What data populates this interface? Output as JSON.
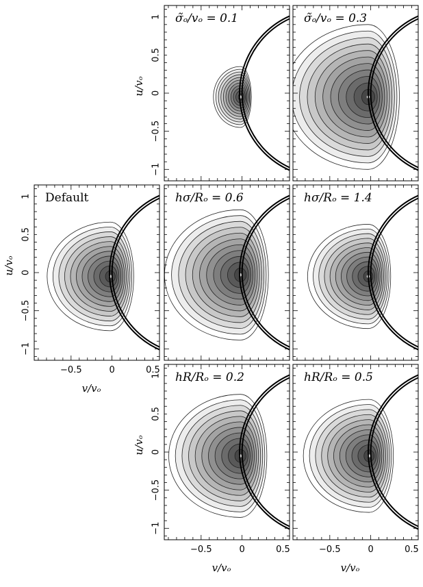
{
  "chart_data": [
    {
      "type": "contour",
      "panel_label": "σ̃ₒ/vₒ = 0.1",
      "xlabel": "",
      "ylabel": "u/vₒ",
      "xlim": [
        -0.95,
        0.58
      ],
      "ylim": [
        -1.15,
        1.15
      ],
      "x_ticks": [
        -0.5,
        0,
        0.5
      ],
      "y_ticks": [
        -1,
        -0.5,
        0,
        0.5,
        1
      ],
      "x_tick_labels": [],
      "y_tick_labels": [
        "−1",
        "−0.5",
        "0",
        "0.5",
        "1"
      ],
      "peak": {
        "x": -0.02,
        "y": -0.05
      },
      "spread": 0.32,
      "circle_center_x": 1.0,
      "circle_radii": [
        1.0,
        1.03
      ]
    },
    {
      "type": "contour",
      "panel_label": "σ̃ₒ/vₒ = 0.3",
      "xlabel": "",
      "ylabel": "",
      "xlim": [
        -0.95,
        0.58
      ],
      "ylim": [
        -1.15,
        1.15
      ],
      "x_ticks": [
        -0.5,
        0,
        0.5
      ],
      "y_ticks": [
        -1,
        -0.5,
        0,
        0.5,
        1
      ],
      "x_tick_labels": [],
      "y_tick_labels": [],
      "peak": {
        "x": -0.03,
        "y": -0.05
      },
      "spread": 1.0,
      "circle_center_x": 1.0,
      "circle_radii": [
        1.0,
        1.03
      ]
    },
    {
      "type": "contour",
      "panel_label": "Default",
      "xlabel": "v/vₒ",
      "ylabel": "u/vₒ",
      "xlim": [
        -0.95,
        0.58
      ],
      "ylim": [
        -1.15,
        1.15
      ],
      "x_ticks": [
        -0.5,
        0,
        0.5
      ],
      "y_ticks": [
        -1,
        -0.5,
        0,
        0.5,
        1
      ],
      "x_tick_labels": [
        "−0.5",
        "0",
        "0.5"
      ],
      "y_tick_labels": [
        "−1",
        "−0.5",
        "0",
        "0.5",
        "1"
      ],
      "peak": {
        "x": -0.02,
        "y": -0.05
      },
      "spread": 0.75,
      "circle_center_x": 1.0,
      "circle_radii": [
        1.0,
        1.03
      ]
    },
    {
      "type": "contour",
      "panel_label": "hσ/Rₒ = 0.6",
      "xlabel": "",
      "ylabel": "",
      "xlim": [
        -0.95,
        0.58
      ],
      "ylim": [
        -1.15,
        1.15
      ],
      "x_ticks": [
        -0.5,
        0,
        0.5
      ],
      "y_ticks": [
        -1,
        -0.5,
        0,
        0.5,
        1
      ],
      "x_tick_labels": [],
      "y_tick_labels": [],
      "peak": {
        "x": -0.02,
        "y": -0.03
      },
      "spread": 0.9,
      "circle_center_x": 1.0,
      "circle_radii": [
        1.0,
        1.03
      ]
    },
    {
      "type": "contour",
      "panel_label": "hσ/Rₒ = 1.4",
      "xlabel": "",
      "ylabel": "",
      "xlim": [
        -0.95,
        0.58
      ],
      "ylim": [
        -1.15,
        1.15
      ],
      "x_ticks": [
        -0.5,
        0,
        0.5
      ],
      "y_ticks": [
        -1,
        -0.5,
        0,
        0.5,
        1
      ],
      "x_tick_labels": [],
      "y_tick_labels": [],
      "peak": {
        "x": -0.03,
        "y": -0.05
      },
      "spread": 0.72,
      "circle_center_x": 1.0,
      "circle_radii": [
        1.0,
        1.03
      ]
    },
    {
      "type": "contour",
      "panel_label": "hR/Rₒ = 0.2",
      "xlabel": "",
      "ylabel": "u/vₒ",
      "xlim": [
        -0.95,
        0.58
      ],
      "ylim": [
        -1.15,
        1.15
      ],
      "x_ticks": [
        -0.5,
        0,
        0.5
      ],
      "y_ticks": [
        -1,
        -0.5,
        0,
        0.5,
        1
      ],
      "x_tick_labels": [
        "−0.5",
        "0",
        "0.5"
      ],
      "y_tick_labels": [
        "−1",
        "−0.5",
        "0",
        "0.5",
        "1"
      ],
      "peak": {
        "x": -0.02,
        "y": -0.05
      },
      "spread": 0.85,
      "circle_center_x": 1.0,
      "circle_radii": [
        1.0,
        1.03
      ]
    },
    {
      "type": "contour",
      "panel_label": "hR/Rₒ = 0.5",
      "xlabel": "",
      "ylabel": "",
      "xlim": [
        -0.95,
        0.58
      ],
      "ylim": [
        -1.15,
        1.15
      ],
      "x_ticks": [
        -0.5,
        0,
        0.5
      ],
      "y_ticks": [
        -1,
        -0.5,
        0,
        0.5,
        1
      ],
      "x_tick_labels": [
        "−0.5",
        "0",
        "0.5"
      ],
      "y_tick_labels": [],
      "peak": {
        "x": -0.02,
        "y": -0.05
      },
      "spread": 0.78,
      "circle_center_x": 1.0,
      "circle_radii": [
        1.0,
        1.03
      ]
    }
  ],
  "bottom_xlabel_left": "v/vₒ",
  "bottom_xlabel_mid": "v/vₒ",
  "bottom_xlabel_right": "v/vₒ"
}
